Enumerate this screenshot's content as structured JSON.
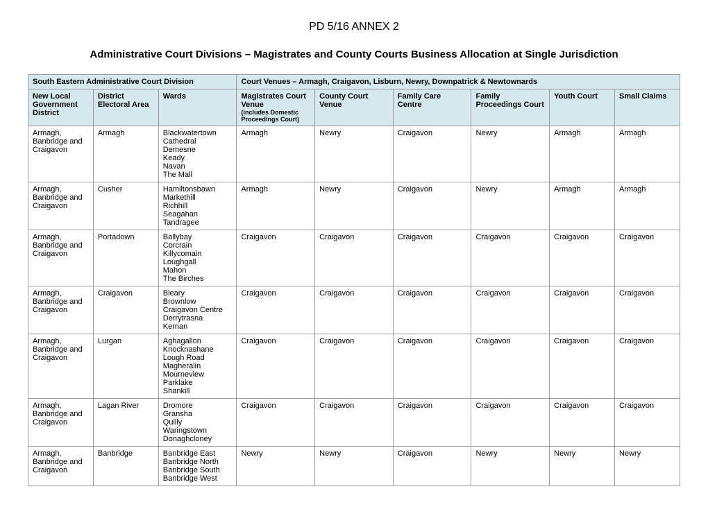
{
  "header": {
    "doc_ref": "PD 5/16 ANNEX 2",
    "title": "Administrative Court Divisions – Magistrates and County Courts Business Allocation at Single Jurisdiction"
  },
  "table": {
    "division_label": "South Eastern Administrative Court Division",
    "venues_label": "Court Venues – Armagh, Craigavon, Lisburn, Newry, Downpatrick & Newtownards",
    "columns": {
      "district": "New Local Government District",
      "area": "District Electoral Area",
      "wards": "Wards",
      "magistrates": "Magistrates Court Venue",
      "magistrates_note": "(includes Domestic Proceedings Court)",
      "county": "County Court Venue",
      "family_care": "Family Care Centre",
      "family_proc": "Family Proceedings Court",
      "youth": "Youth Court",
      "small": "Small Claims"
    },
    "rows": [
      {
        "district": "Armagh, Banbridge and Craigavon",
        "area": "Armagh",
        "wards": [
          "Blackwatertown",
          "Cathedral",
          "Demesne",
          "Keady",
          "Navan",
          "The Mall"
        ],
        "magistrates": "Armagh",
        "county": "Newry",
        "family_care": "Craigavon",
        "family_proc": "Newry",
        "youth": "Armagh",
        "small": "Armagh"
      },
      {
        "district": "Armagh, Banbridge and Craigavon",
        "area": "Cusher",
        "wards": [
          "Hamiltonsbawn",
          "Markethill",
          "Richhill",
          "Seagahan",
          "Tandragee"
        ],
        "magistrates": "Armagh",
        "county": "Newry",
        "family_care": "Craigavon",
        "family_proc": "Newry",
        "youth": "Armagh",
        "small": "Armagh"
      },
      {
        "district": "Armagh, Banbridge and Craigavon",
        "area": "Portadown",
        "wards": [
          "Ballybay",
          "Corcrain",
          "Killycomain",
          "Loughgall",
          "Mahon",
          "The Birches"
        ],
        "magistrates": "Craigavon",
        "county": "Craigavon",
        "family_care": "Craigavon",
        "family_proc": "Craigavon",
        "youth": "Craigavon",
        "small": "Craigavon"
      },
      {
        "district": "Armagh, Banbridge and Craigavon",
        "area": "Craigavon",
        "wards": [
          "Bleary",
          "Brownlow",
          "Craigavon Centre",
          "Derrytrasna",
          "Kernan"
        ],
        "magistrates": "Craigavon",
        "county": "Craigavon",
        "family_care": "Craigavon",
        "family_proc": "Craigavon",
        "youth": "Craigavon",
        "small": "Craigavon"
      },
      {
        "district": "Armagh, Banbridge and Craigavon",
        "area": "Lurgan",
        "wards": [
          "Aghagallon",
          "Knocknashane",
          "Lough Road",
          "Magheralin",
          "Mourneview",
          "Parklake",
          "Shankill"
        ],
        "magistrates": "Craigavon",
        "county": "Craigavon",
        "family_care": "Craigavon",
        "family_proc": "Craigavon",
        "youth": "Craigavon",
        "small": "Craigavon"
      },
      {
        "district": "Armagh, Banbridge and Craigavon",
        "area": "Lagan River",
        "wards": [
          "Dromore",
          "Gransha",
          "Quilly",
          "Waringstown",
          "Donaghcloney"
        ],
        "magistrates": "Craigavon",
        "county": "Craigavon",
        "family_care": "Craigavon",
        "family_proc": "Craigavon",
        "youth": "Craigavon",
        "small": "Craigavon"
      },
      {
        "district": "Armagh, Banbridge and Craigavon",
        "area": "Banbridge",
        "wards": [
          "Banbridge East",
          "Banbridge North",
          "Banbridge South",
          "Banbridge West"
        ],
        "magistrates": "Newry",
        "county": "Newry",
        "family_care": "Craigavon",
        "family_proc": "Newry",
        "youth": "Newry",
        "small": "Newry"
      }
    ]
  }
}
